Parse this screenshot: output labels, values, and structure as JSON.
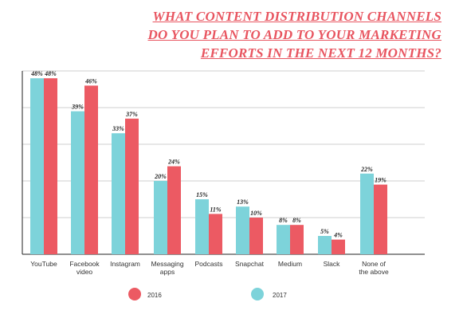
{
  "title": {
    "lines": [
      "WHAT CONTENT DISTRIBUTION CHANNELS",
      "DO YOU PLAN TO ADD TO YOUR MARKETING",
      "EFFORTS IN THE NEXT 12 MONTHS?"
    ]
  },
  "colors": {
    "series_2016": "#ec5a63",
    "series_2017": "#7dd3da",
    "axis": "#222222",
    "grid": "#bfbfbf",
    "title": "#e85560"
  },
  "legend": {
    "items": [
      {
        "label": "2016",
        "color": "#ec5a63"
      },
      {
        "label": "2017",
        "color": "#7dd3da"
      }
    ]
  },
  "chart_data": {
    "type": "bar",
    "categories": [
      "YouTube",
      "Facebook video",
      "Instagram",
      "Messaging apps",
      "Podcasts",
      "Snapchat",
      "Medium",
      "Slack",
      "None of the above"
    ],
    "category_label_lines": [
      [
        "YouTube"
      ],
      [
        "Facebook",
        "video"
      ],
      [
        "Instagram"
      ],
      [
        "Messaging",
        "apps"
      ],
      [
        "Podcasts"
      ],
      [
        "Snapchat"
      ],
      [
        "Medium"
      ],
      [
        "Slack"
      ],
      [
        "None of",
        "the above"
      ]
    ],
    "series": [
      {
        "name": "2017",
        "color": "#7dd3da",
        "values": [
          48,
          39,
          33,
          20,
          15,
          13,
          8,
          5,
          22
        ],
        "labels": [
          "48%",
          "39%",
          "33%",
          "20%",
          "15%",
          "13%",
          "8%",
          "5%",
          "22%"
        ]
      },
      {
        "name": "2016",
        "color": "#ec5a63",
        "values": [
          48,
          46,
          37,
          24,
          11,
          10,
          8,
          4,
          19
        ],
        "labels": [
          "48%",
          "46%",
          "37%",
          "24%",
          "11%",
          "10%",
          "8%",
          "4%",
          "19%"
        ]
      }
    ],
    "ylim": [
      0,
      50
    ],
    "grid": true,
    "y_tick_labels_shown": false,
    "legend_position": "bottom-center",
    "xlabel": "",
    "ylabel": ""
  }
}
